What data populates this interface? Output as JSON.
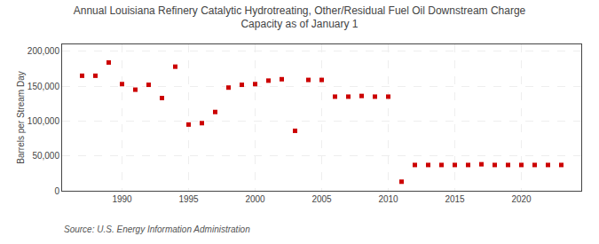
{
  "chart_data": {
    "type": "scatter",
    "title": "Annual Louisiana Refinery Catalytic Hydrotreating, Other/Residual Fuel Oil Downstream Charge\nCapacity as of January 1",
    "ylabel": "Barrels per Stream Day",
    "annotations": [
      "Source: U.S. Energy Information Administration"
    ],
    "x": [
      1987,
      1988,
      1989,
      1990,
      1991,
      1992,
      1993,
      1994,
      1995,
      1996,
      1997,
      1998,
      1999,
      2000,
      2001,
      2002,
      2003,
      2004,
      2005,
      2006,
      2007,
      2008,
      2009,
      2010,
      2011,
      2012,
      2013,
      2014,
      2015,
      2016,
      2017,
      2018,
      2019,
      2020,
      2021,
      2022,
      2023
    ],
    "values": [
      165000,
      165000,
      184000,
      153000,
      145000,
      152000,
      133000,
      178000,
      95000,
      97000,
      113000,
      148000,
      152000,
      153000,
      158000,
      160000,
      86000,
      159000,
      159000,
      135000,
      135000,
      136000,
      135000,
      135000,
      13000,
      37000,
      37000,
      37000,
      37000,
      37000,
      38000,
      37000,
      37000,
      37000,
      37000,
      37000,
      37000
    ],
    "color": "#cc0000",
    "marker": "square",
    "xlim": [
      1985.5,
      2024.5
    ],
    "xticks": [
      1990,
      1995,
      2000,
      2005,
      2010,
      2015,
      2020
    ],
    "ylim": [
      0,
      210000
    ],
    "yticks": [
      0,
      {
        "value": 50000,
        "label": "50,000"
      },
      {
        "value": 100000,
        "label": "100,000"
      },
      {
        "value": 150000,
        "label": "150,000"
      },
      {
        "value": 200000,
        "label": "200,000"
      }
    ],
    "grid": true
  }
}
